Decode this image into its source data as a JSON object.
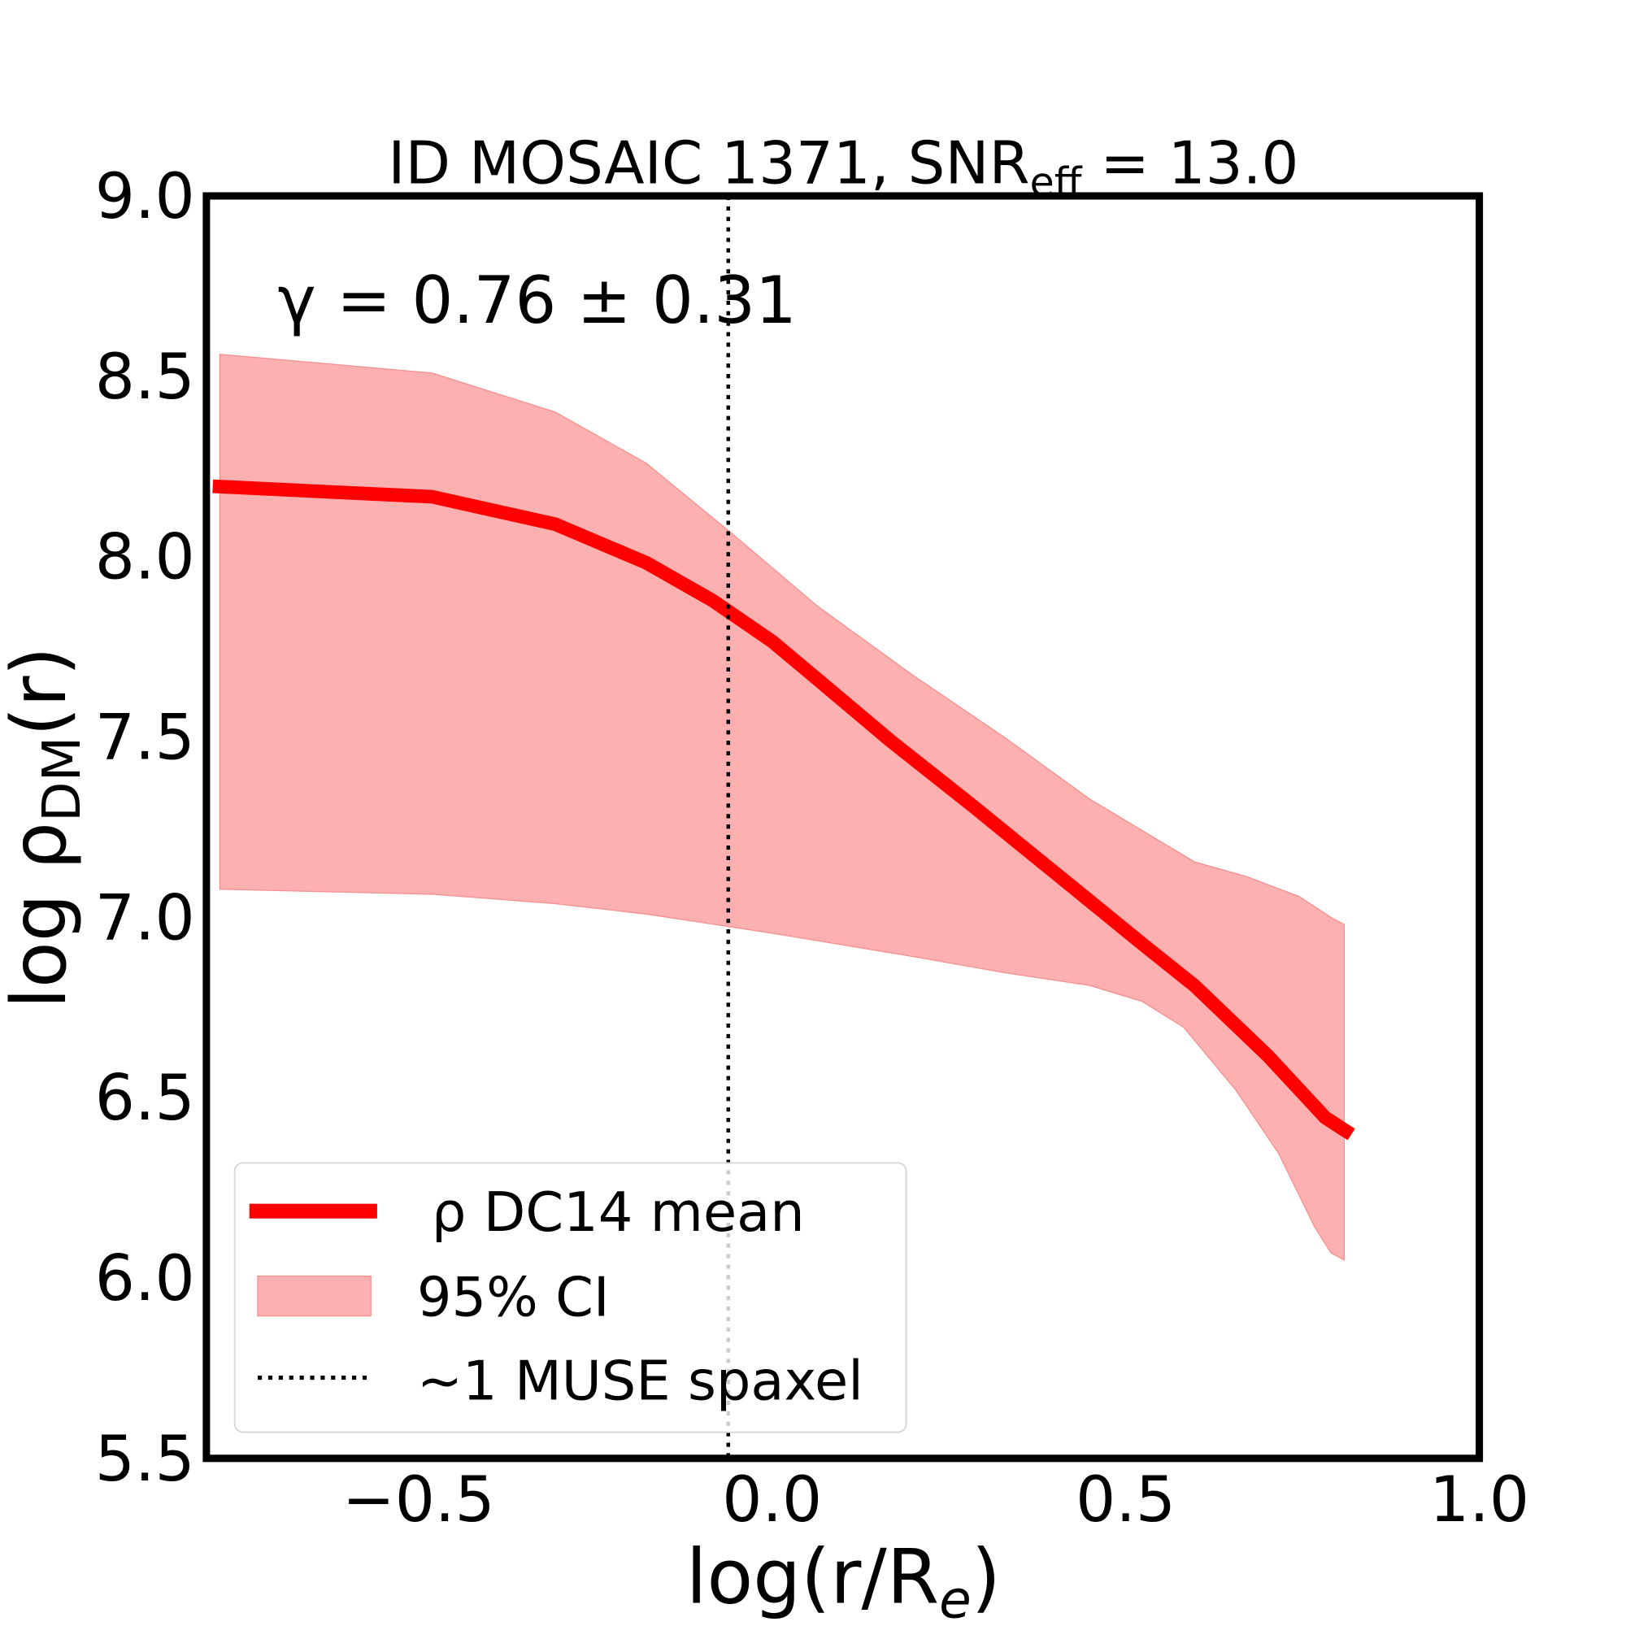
{
  "chart_data": {
    "type": "line",
    "title": "ID MOSAIC 1371, SNR",
    "title_sub": "eff",
    "title_tail": " = 13.0",
    "annotation": "γ = 0.76 ± 0.31",
    "xlabel": "log(r/R",
    "xlabel_sub": "e",
    "xlabel_tail": ")",
    "ylabel": "log ρ",
    "ylabel_sub": "DM",
    "ylabel_tail": "(r)",
    "xlim": [
      -0.8,
      1.0
    ],
    "ylim": [
      5.5,
      9.0
    ],
    "xticks": [
      -0.5,
      0.0,
      0.5,
      1.0
    ],
    "xtick_labels": [
      "−0.5",
      "0.0",
      "0.5",
      "1.0"
    ],
    "yticks": [
      5.5,
      6.0,
      6.5,
      7.0,
      7.5,
      8.0,
      8.5,
      9.0
    ],
    "ytick_labels": [
      "5.5",
      "6.0",
      "6.5",
      "7.0",
      "7.5",
      "8.0",
      "8.5",
      "9.0"
    ],
    "grid": false,
    "legend_position": "lower-left",
    "colors": {
      "mean": "#ff0000",
      "band": "#fdb0b0",
      "spaxel": "#000000"
    },
    "series": [
      {
        "name": "ρ DC14 mean",
        "x": [
          -0.791,
          -0.481,
          -0.307,
          -0.178,
          -0.084,
          0.0,
          0.064,
          0.167,
          0.286,
          0.419,
          0.523,
          0.597,
          0.701,
          0.782,
          0.819
        ],
        "y": [
          8.195,
          8.166,
          8.09,
          7.983,
          7.878,
          7.765,
          7.66,
          7.49,
          7.305,
          7.093,
          6.927,
          6.811,
          6.616,
          6.445,
          6.398
        ]
      }
    ],
    "band": {
      "name": "95% CI",
      "upper": {
        "x": [
          -0.781,
          -0.481,
          -0.307,
          -0.178,
          -0.055,
          0.064,
          0.197,
          0.33,
          0.449,
          0.523,
          0.597,
          0.671,
          0.745,
          0.79,
          0.809
        ],
        "y": [
          8.561,
          8.509,
          8.401,
          8.259,
          8.061,
          7.863,
          7.674,
          7.497,
          7.328,
          7.241,
          7.154,
          7.113,
          7.058,
          7.0,
          6.98
        ]
      },
      "lower": {
        "x": [
          -0.781,
          -0.481,
          -0.307,
          -0.178,
          0.0,
          0.197,
          0.33,
          0.449,
          0.523,
          0.582,
          0.656,
          0.716,
          0.767,
          0.79,
          0.809
        ],
        "y": [
          7.078,
          7.064,
          7.038,
          7.009,
          6.956,
          6.892,
          6.846,
          6.811,
          6.767,
          6.695,
          6.52,
          6.346,
          6.142,
          6.07,
          6.05
        ]
      }
    },
    "vline": {
      "name": "~1 MUSE spaxel",
      "x": -0.062
    }
  }
}
